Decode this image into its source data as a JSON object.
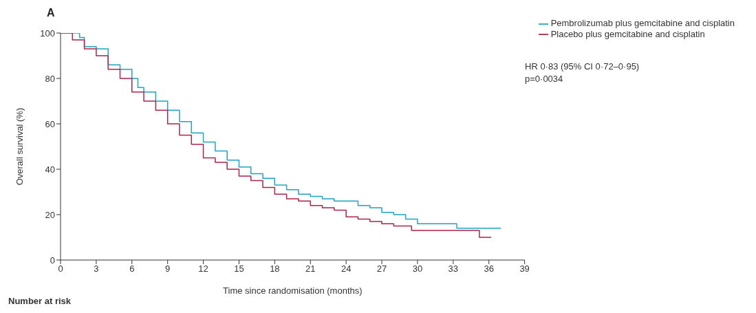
{
  "chart_data": {
    "type": "step",
    "title": "A",
    "xlabel": "Time since randomisation (months)",
    "ylabel": "Overall survival (%)",
    "xlim": [
      0,
      39
    ],
    "xticks": [
      0,
      3,
      6,
      9,
      12,
      15,
      18,
      21,
      24,
      27,
      30,
      33,
      36,
      39
    ],
    "ylim": [
      0,
      100
    ],
    "yticks": [
      0,
      20,
      40,
      60,
      80,
      100
    ],
    "legend": "top right",
    "marker": "none",
    "line_style": "solid",
    "series": [
      {
        "name": "Pembrolizumab plus gemcitabine and cisplatin",
        "color": "#1fa3c4",
        "x": [
          0,
          1.6,
          2,
          3,
          4,
          5,
          6,
          6.5,
          7,
          8,
          9,
          10,
          11,
          12,
          13,
          14,
          15,
          16,
          17,
          18,
          19,
          20,
          21,
          22,
          23,
          24,
          25,
          26,
          27,
          28,
          29,
          30,
          31,
          33,
          33.3,
          37
        ],
        "values": [
          100,
          98,
          94,
          93,
          86,
          84,
          80,
          76,
          74,
          70,
          66,
          61,
          56,
          52,
          48,
          44,
          41,
          38,
          36,
          33,
          31,
          29,
          28,
          27,
          26,
          26,
          24,
          23,
          21,
          20,
          18,
          16,
          16,
          16,
          14,
          14
        ]
      },
      {
        "name": "Placebo plus gemcitabine and cisplatin",
        "color": "#b0224a",
        "x": [
          0,
          1,
          2,
          3,
          4,
          5,
          6,
          7,
          8,
          9,
          10,
          11,
          12,
          13,
          14,
          15,
          16,
          17,
          18,
          19,
          20,
          21,
          22,
          23,
          24,
          25,
          26,
          27,
          28,
          29,
          29.5,
          33,
          35,
          35.2,
          36.2
        ],
        "values": [
          100,
          97,
          93,
          90,
          84,
          80,
          74,
          70,
          66,
          60,
          55,
          51,
          45,
          43,
          40,
          37,
          35,
          32,
          29,
          27,
          26,
          24,
          23,
          22,
          19,
          18,
          17,
          16,
          15,
          15,
          13,
          13,
          13,
          10,
          10
        ]
      }
    ],
    "annotations": [
      "HR 0·83 (95% CI 0·72–0·95)",
      "p=0·0034",
      "Number at risk"
    ]
  }
}
